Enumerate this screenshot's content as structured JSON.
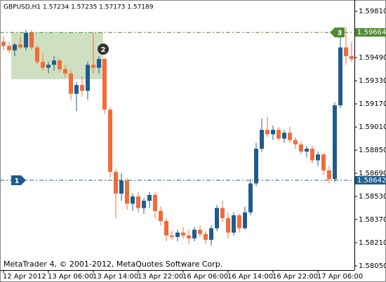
{
  "chart_data": {
    "type": "candlestick",
    "title": "GBPUSD,H1  1.57234 1.57235 1.57173 1.57189",
    "footer": "MetaTrader 4, © 2001-2012, MetaQuotes Software Corp.",
    "bull_color": "#1f5c8b",
    "bear_color": "#f26b38",
    "open": [
      1.596,
      1.5957,
      1.5954,
      1.5958,
      1.5956,
      1.5966,
      1.5956,
      1.5946,
      1.5942,
      1.5944,
      1.5947,
      1.5941,
      1.5938,
      1.5924,
      1.593,
      1.5926,
      1.5944,
      1.5942,
      1.5948,
      1.5913,
      1.587,
      1.5855,
      1.5864,
      1.5848,
      1.5853,
      1.5845,
      1.585,
      1.5854,
      1.5843,
      1.5836,
      1.5826,
      1.5825,
      1.5828,
      1.5826,
      1.5824,
      1.583,
      1.5827,
      1.5823,
      1.5831,
      1.5845,
      1.5838,
      1.5828,
      1.584,
      1.5831,
      1.5842,
      1.5862,
      1.5886,
      1.5899,
      1.5896,
      1.5899,
      1.5893,
      1.5897,
      1.5892,
      1.5889,
      1.5884,
      1.5886,
      1.5878,
      1.5882,
      1.5871,
      1.5865,
      1.5916,
      1.5956,
      1.595
    ],
    "high": [
      1.5964,
      1.596,
      1.5959,
      1.5964,
      1.5968,
      1.5968,
      1.5957,
      1.5952,
      1.5946,
      1.595,
      1.5948,
      1.5944,
      1.594,
      1.5932,
      1.5936,
      1.5946,
      1.5966,
      1.595,
      1.5949,
      1.5915,
      1.5872,
      1.5869,
      1.5866,
      1.5855,
      1.5856,
      1.5852,
      1.5856,
      1.5856,
      1.5846,
      1.5838,
      1.5829,
      1.583,
      1.5832,
      1.583,
      1.5832,
      1.5833,
      1.5829,
      1.5833,
      1.5847,
      1.585,
      1.5842,
      1.5842,
      1.5841,
      1.5846,
      1.5865,
      1.589,
      1.5907,
      1.5908,
      1.5902,
      1.5901,
      1.5899,
      1.5901,
      1.5894,
      1.5891,
      1.5888,
      1.5888,
      1.5884,
      1.5883,
      1.5874,
      1.5918,
      1.5965,
      1.597,
      1.596
    ],
    "low": [
      1.5954,
      1.5952,
      1.595,
      1.5955,
      1.5954,
      1.5954,
      1.5944,
      1.594,
      1.5938,
      1.594,
      1.5939,
      1.5935,
      1.592,
      1.5912,
      1.5922,
      1.592,
      1.5938,
      1.5938,
      1.591,
      1.5866,
      1.5838,
      1.585,
      1.5844,
      1.5843,
      1.5842,
      1.5841,
      1.5845,
      1.5838,
      1.5833,
      1.5822,
      1.5823,
      1.5822,
      1.5824,
      1.582,
      1.5822,
      1.5825,
      1.582,
      1.5819,
      1.5829,
      1.5835,
      1.5824,
      1.5826,
      1.5828,
      1.583,
      1.584,
      1.586,
      1.5884,
      1.5894,
      1.5892,
      1.5891,
      1.589,
      1.589,
      1.5886,
      1.5882,
      1.588,
      1.5876,
      1.5874,
      1.5868,
      1.5862,
      1.5863,
      1.5914,
      1.5944,
      1.5946
    ],
    "close": [
      1.5957,
      1.5954,
      1.5958,
      1.5956,
      1.5966,
      1.5956,
      1.5946,
      1.5942,
      1.5944,
      1.5947,
      1.5941,
      1.5938,
      1.5924,
      1.593,
      1.5926,
      1.5944,
      1.5942,
      1.5948,
      1.5913,
      1.587,
      1.5855,
      1.5864,
      1.5848,
      1.5853,
      1.5845,
      1.585,
      1.5854,
      1.5843,
      1.5836,
      1.5826,
      1.5825,
      1.5828,
      1.5826,
      1.5824,
      1.583,
      1.5827,
      1.5823,
      1.5831,
      1.5845,
      1.5838,
      1.5828,
      1.584,
      1.5831,
      1.5842,
      1.5862,
      1.5886,
      1.5899,
      1.5896,
      1.5899,
      1.5893,
      1.5897,
      1.5892,
      1.5889,
      1.5884,
      1.5886,
      1.5878,
      1.5882,
      1.5871,
      1.5865,
      1.5916,
      1.5956,
      1.595,
      1.5948
    ],
    "xtick_labels": [
      "12 Apr 2012",
      "13 Apr 06:00",
      "13 Apr 14:00",
      "13 Apr 22:00",
      "16 Apr 06:00",
      "16 Apr 14:00",
      "16 Apr 22:00",
      "17 Apr 06:00"
    ],
    "ylim": [
      1.58021,
      1.59888
    ],
    "yticks": [
      {
        "value": 1.5981,
        "label": "1.59810"
      },
      {
        "value": 1.5949,
        "label": "1.59490"
      },
      {
        "value": 1.5933,
        "label": "1.59330"
      },
      {
        "value": 1.5917,
        "label": "1.59170"
      },
      {
        "value": 1.5901,
        "label": "1.59010"
      },
      {
        "value": 1.5885,
        "label": "1.58850"
      },
      {
        "value": 1.5869,
        "label": "1.58690"
      },
      {
        "value": 1.5853,
        "label": "1.58530"
      },
      {
        "value": 1.5837,
        "label": "1.58370"
      },
      {
        "value": 1.5821,
        "label": "1.58210"
      },
      {
        "value": 1.5805,
        "label": "1.58050"
      }
    ],
    "levels": [
      {
        "value": 1.59664,
        "label": "1.59664",
        "marker": "3",
        "color": "#4e8a2e"
      },
      {
        "value": 1.58642,
        "label": "1.58642",
        "marker": "1",
        "color": "#1f5c8b"
      }
    ],
    "annotation": "2"
  }
}
